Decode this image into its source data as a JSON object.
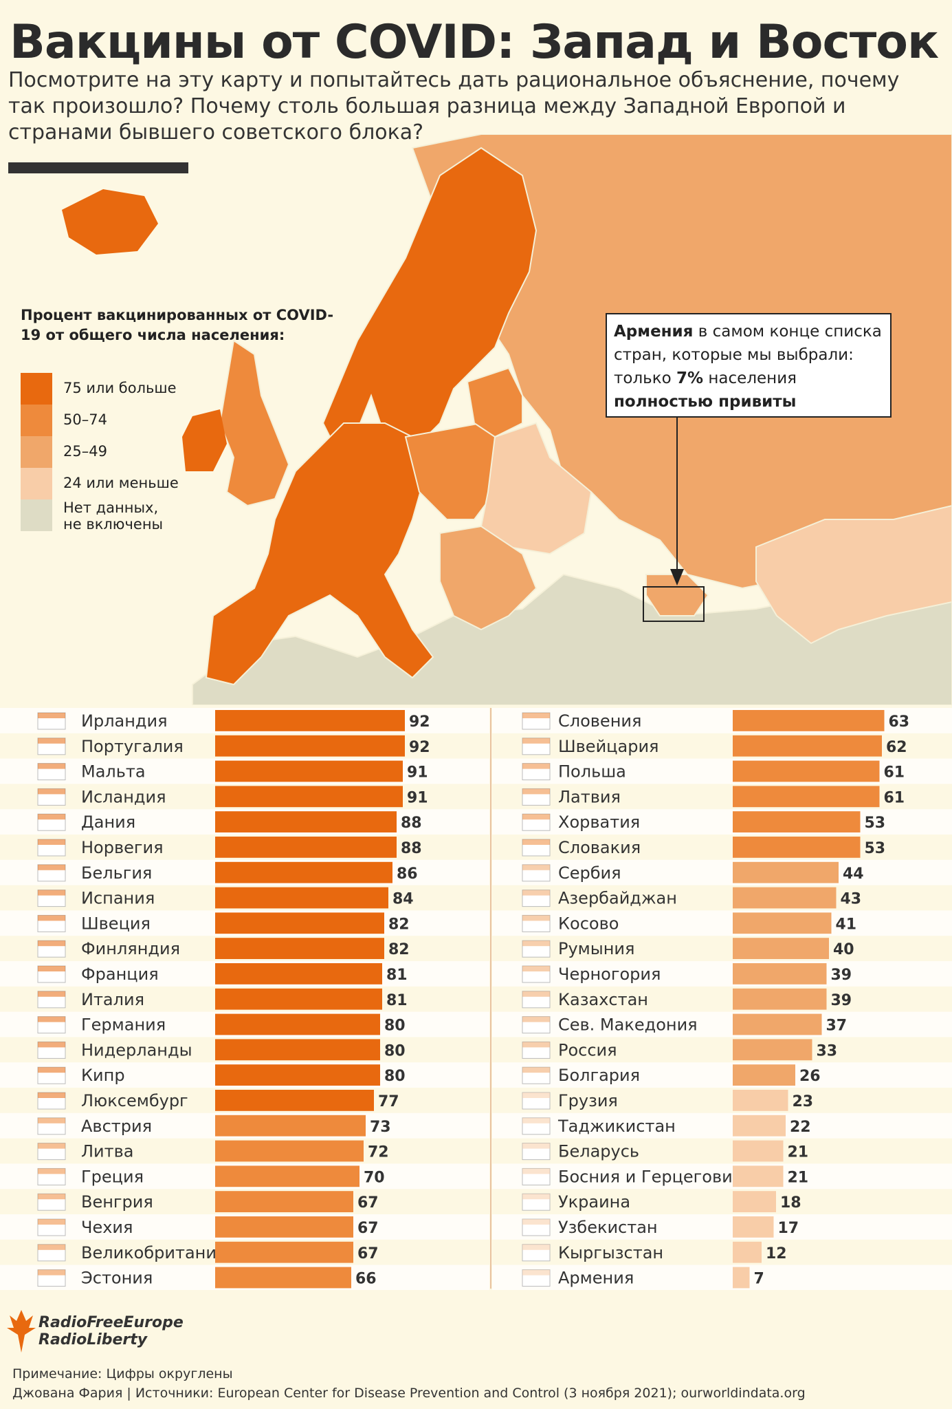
{
  "title": "Вакцины от COVID: Запад и Восток",
  "subtitle": "Посмотрите на эту карту и попытайтесь дать рациональное объяснение, почему так произошло? Почему столь большая разница между Западной Европой и странами бывшего советского блока?",
  "colors": {
    "band_75_plus": "#e8690f",
    "band_50_74": "#ee8a3c",
    "band_25_49": "#f0a76a",
    "band_24_less": "#f8cda8",
    "no_data": "#dedcc5",
    "background": "#fdf8e3"
  },
  "legend": {
    "title": "Процент вакцинированных от COVID-19 от общего числа населения:",
    "items": [
      {
        "label": "75 или больше",
        "color": "#e8690f"
      },
      {
        "label": "50–74",
        "color": "#ee8a3c"
      },
      {
        "label": "25–49",
        "color": "#f0a76a"
      },
      {
        "label": "24 или меньше",
        "color": "#f8cda8"
      },
      {
        "label": "Нет данных, не включены",
        "color": "#dedcc5"
      }
    ]
  },
  "callout": {
    "country": "Армения",
    "text1": " в самом конце списка стран, которые мы выбрали: только ",
    "pct": "7%",
    "text2": " населения ",
    "emph": "полностью привиты"
  },
  "chart_data": {
    "type": "bar",
    "orientation": "horizontal",
    "xlim": [
      0,
      100
    ],
    "columns": [
      {
        "categories": [
          "Ирландия",
          "Португалия",
          "Мальта",
          "Исландия",
          "Дания",
          "Норвегия",
          "Бельгия",
          "Испания",
          "Швеция",
          "Финляндия",
          "Франция",
          "Италия",
          "Германия",
          "Нидерланды",
          "Кипр",
          "Люксембург",
          "Австрия",
          "Литва",
          "Греция",
          "Венгрия",
          "Чехия",
          "Великобритания",
          "Эстония"
        ],
        "values": [
          92,
          92,
          91,
          91,
          88,
          88,
          86,
          84,
          82,
          82,
          81,
          81,
          80,
          80,
          80,
          77,
          73,
          72,
          70,
          67,
          67,
          67,
          66
        ]
      },
      {
        "categories": [
          "Словения",
          "Швейцария",
          "Польша",
          "Латвия",
          "Хорватия",
          "Словакия",
          "Сербия",
          "Азербайджан",
          "Косово",
          "Румыния",
          "Черногория",
          "Казахстан",
          "Сев. Македония",
          "Россия",
          "Болгария",
          "Грузия",
          "Таджикистан",
          "Беларусь",
          "Босния и Герцеговина",
          "Украина",
          "Узбекистан",
          "Кыргызстан",
          "Армения"
        ],
        "values": [
          63,
          62,
          61,
          61,
          53,
          53,
          44,
          43,
          41,
          40,
          39,
          39,
          37,
          33,
          26,
          23,
          22,
          21,
          21,
          18,
          17,
          12,
          7
        ]
      }
    ]
  },
  "logo": {
    "line1": "RadioFreeEurope",
    "line2": "RadioLiberty"
  },
  "note": "Примечание: Цифры округлены",
  "sources": "Джована Фария | Источники: European Center for Disease Prevention and Control (3 ноября 2021); ourworldindata.org"
}
